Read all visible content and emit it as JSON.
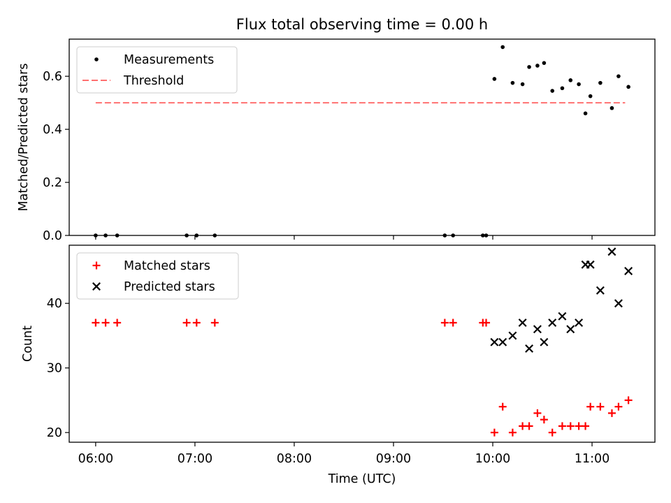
{
  "chart_data": [
    {
      "type": "scatter",
      "title": "Flux total observing time = 0.00 h",
      "xlabel": "",
      "ylabel": "Matched/Predicted stars",
      "xlim": [
        "05:44",
        "11:38"
      ],
      "ylim": [
        0,
        0.74
      ],
      "yticks": [
        0.0,
        0.2,
        0.4,
        0.6
      ],
      "ytick_labels": [
        "0.0",
        "0.2",
        "0.4",
        "0.6"
      ],
      "legend": {
        "position": "top-left",
        "entries": [
          "Measurements",
          "Threshold"
        ]
      },
      "series": [
        {
          "name": "Measurements",
          "marker": "dot",
          "color": "#000000",
          "x": [
            "06:00",
            "06:06",
            "06:13",
            "06:55",
            "07:01",
            "07:12",
            "09:31",
            "09:36",
            "09:54",
            "09:56",
            "10:01",
            "10:06",
            "10:12",
            "10:18",
            "10:22",
            "10:27",
            "10:31",
            "10:36",
            "10:42",
            "10:47",
            "10:52",
            "10:56",
            "10:59",
            "11:05",
            "11:12",
            "11:16",
            "11:22"
          ],
          "y": [
            0.0,
            0.0,
            0.0,
            0.0,
            0.0,
            0.0,
            0.0,
            0.0,
            0.0,
            0.0,
            0.59,
            0.71,
            0.575,
            0.57,
            0.635,
            0.64,
            0.65,
            0.545,
            0.555,
            0.585,
            0.57,
            0.46,
            0.525,
            0.575,
            0.48,
            0.6,
            0.56
          ]
        },
        {
          "name": "Threshold",
          "style": "dashed-line",
          "color": "#ff7070",
          "x": [
            "06:00",
            "11:20"
          ],
          "y": [
            0.5,
            0.5
          ]
        }
      ]
    },
    {
      "type": "scatter",
      "xlabel": "Time (UTC)",
      "ylabel": "Count",
      "xlim": [
        "05:44",
        "11:38"
      ],
      "ylim": [
        18.5,
        49
      ],
      "xticks": [
        "06:00",
        "07:00",
        "08:00",
        "09:00",
        "10:00",
        "11:00"
      ],
      "yticks": [
        20,
        30,
        40
      ],
      "ytick_labels": [
        "20",
        "30",
        "40"
      ],
      "legend": {
        "position": "top-left",
        "entries": [
          "Matched stars",
          "Predicted stars"
        ]
      },
      "series": [
        {
          "name": "Matched stars",
          "marker": "plus",
          "color": "#ff0000",
          "x": [
            "06:00",
            "06:06",
            "06:13",
            "06:55",
            "07:01",
            "07:12",
            "09:31",
            "09:36",
            "09:54",
            "09:56",
            "10:01",
            "10:06",
            "10:12",
            "10:18",
            "10:22",
            "10:27",
            "10:31",
            "10:36",
            "10:42",
            "10:47",
            "10:52",
            "10:56",
            "10:59",
            "11:05",
            "11:12",
            "11:16",
            "11:22"
          ],
          "y": [
            37,
            37,
            37,
            37,
            37,
            37,
            37,
            37,
            37,
            37,
            20,
            24,
            20,
            21,
            21,
            23,
            22,
            20,
            21,
            21,
            21,
            21,
            24,
            24,
            23,
            24,
            25
          ]
        },
        {
          "name": "Predicted stars",
          "marker": "x",
          "color": "#000000",
          "x": [
            "10:01",
            "10:06",
            "10:12",
            "10:18",
            "10:22",
            "10:27",
            "10:31",
            "10:36",
            "10:42",
            "10:47",
            "10:52",
            "10:56",
            "10:59",
            "11:05",
            "11:12",
            "11:16",
            "11:22"
          ],
          "y": [
            34,
            34,
            35,
            37,
            33,
            36,
            34,
            37,
            38,
            36,
            37,
            46,
            46,
            42,
            48,
            40,
            45
          ]
        }
      ]
    }
  ]
}
